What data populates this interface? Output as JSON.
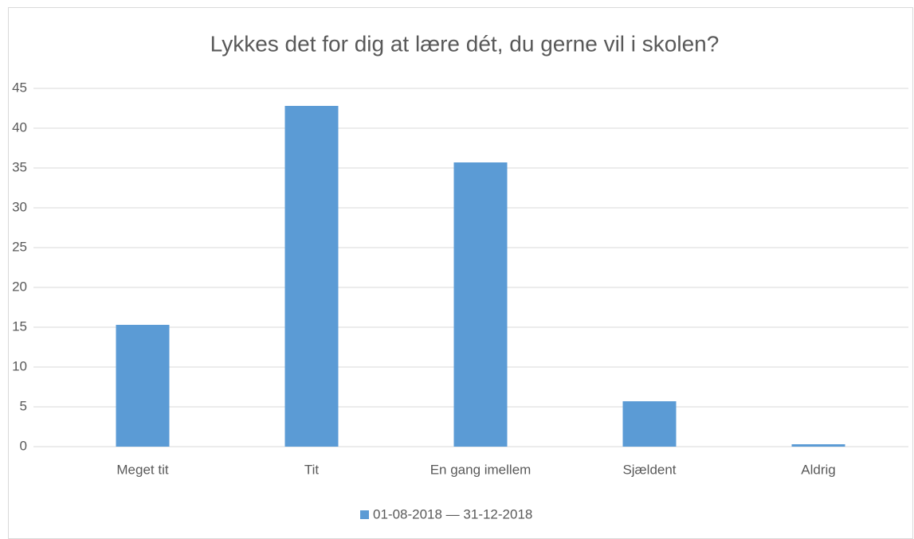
{
  "chart_data": {
    "type": "bar",
    "title": "Lykkes det for dig at lære dét, du gerne vil i skolen?",
    "categories": [
      "Meget tit",
      "Tit",
      "En gang imellem",
      "Sjældent",
      "Aldrig"
    ],
    "series": [
      {
        "name": "01-08-2018 — 31-12-2018",
        "color": "#5b9bd5",
        "values": [
          15.3,
          42.8,
          35.7,
          5.7,
          0.3
        ]
      }
    ],
    "ylim": [
      0,
      45
    ],
    "yticks": [
      0,
      5,
      10,
      15,
      20,
      25,
      30,
      35,
      40,
      45
    ],
    "grid": true,
    "legend": "bottom"
  }
}
